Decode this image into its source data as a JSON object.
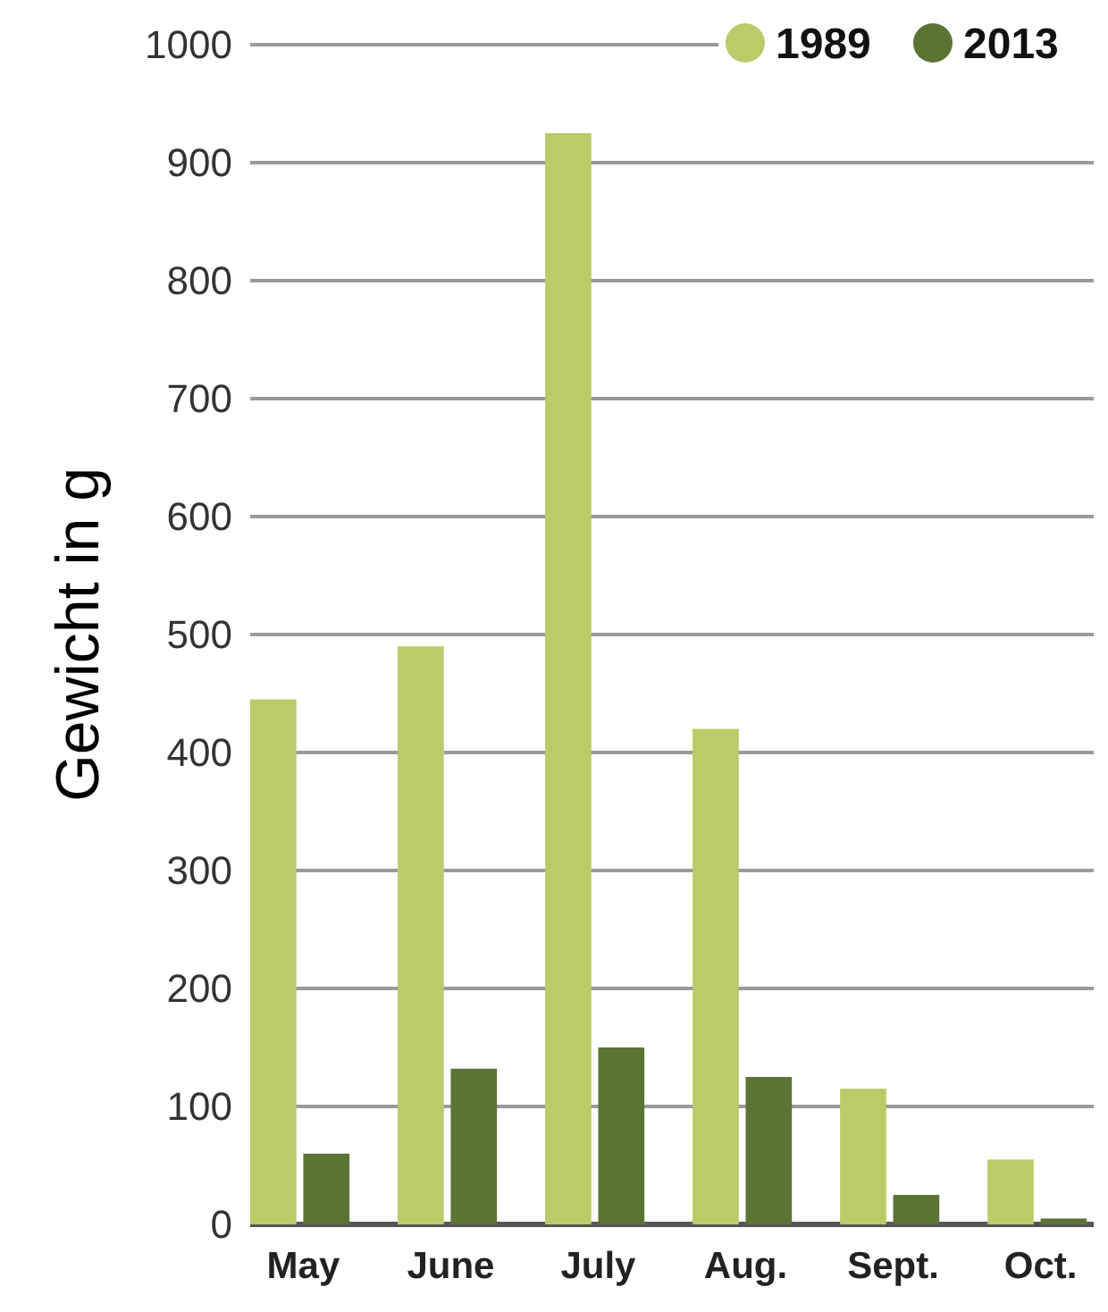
{
  "chart_data": {
    "type": "bar",
    "ylabel": "Gewicht in g",
    "categories": [
      "May",
      "June",
      "July",
      "Aug.",
      "Sept.",
      "Oct."
    ],
    "series": [
      {
        "name": "1989",
        "color": "#bcca6a",
        "values": [
          445,
          490,
          925,
          420,
          115,
          55
        ]
      },
      {
        "name": "2013",
        "color": "#5a7434",
        "values": [
          60,
          132,
          150,
          125,
          25,
          5
        ]
      }
    ],
    "ylim": [
      0,
      1000
    ],
    "yticks": [
      0,
      100,
      200,
      300,
      400,
      500,
      600,
      700,
      800,
      900,
      1000
    ],
    "grid": "y",
    "legend": "top right"
  }
}
